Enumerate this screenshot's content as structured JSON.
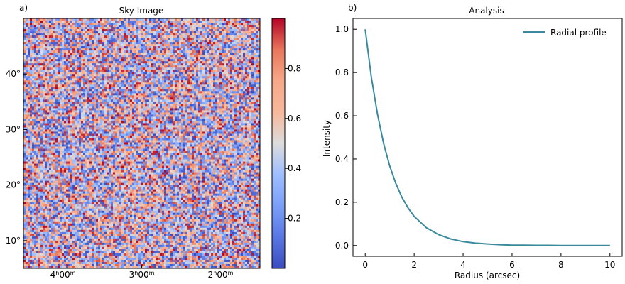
{
  "panels": {
    "left_label": "a)",
    "right_label": "b)"
  },
  "chart_data": [
    {
      "type": "heatmap",
      "title": "Sky Image",
      "x_ticks": [
        {
          "h": "4",
          "m": "00",
          "value": 4.0
        },
        {
          "h": "3",
          "m": "00",
          "value": 3.0
        },
        {
          "h": "2",
          "m": "00",
          "value": 2.0
        }
      ],
      "x_range_hours": [
        4.5,
        1.5
      ],
      "y_ticks": [
        {
          "label": "10°",
          "value": 10
        },
        {
          "label": "20°",
          "value": 20
        },
        {
          "label": "30°",
          "value": 30
        },
        {
          "label": "40°",
          "value": 40
        }
      ],
      "y_range_deg": [
        5,
        50
      ],
      "colormap": "coolwarm",
      "color_range": [
        0.0,
        1.0
      ],
      "colorbar_ticks": [
        "0.2",
        "0.4",
        "0.6",
        "0.8"
      ],
      "pixel_values": "uniform random noise in [0, 1]"
    },
    {
      "type": "line",
      "title": "Analysis",
      "xlabel": "Radius (arcsec)",
      "ylabel": "Intensity",
      "xlim": [
        -0.5,
        10.5
      ],
      "ylim": [
        -0.05,
        1.05
      ],
      "x_ticks": [
        "0",
        "2",
        "4",
        "6",
        "8",
        "10"
      ],
      "y_ticks": [
        "0.0",
        "0.2",
        "0.4",
        "0.6",
        "0.8",
        "1.0"
      ],
      "legend_position": "top-right",
      "grid": false,
      "series": [
        {
          "name": "Radial profile",
          "color": "#3a8a9e",
          "x": [
            0,
            0.25,
            0.5,
            0.75,
            1,
            1.25,
            1.5,
            1.75,
            2,
            2.5,
            3,
            3.5,
            4,
            4.5,
            5,
            5.5,
            6,
            6.5,
            7,
            7.5,
            8,
            8.5,
            9,
            9.5,
            10
          ],
          "y": [
            1.0,
            0.779,
            0.607,
            0.472,
            0.368,
            0.287,
            0.223,
            0.174,
            0.135,
            0.082,
            0.05,
            0.03,
            0.018,
            0.011,
            0.007,
            0.004,
            0.002,
            0.002,
            0.001,
            0.001,
            0.0,
            0.0,
            0.0,
            0.0,
            0.0
          ]
        }
      ]
    }
  ]
}
